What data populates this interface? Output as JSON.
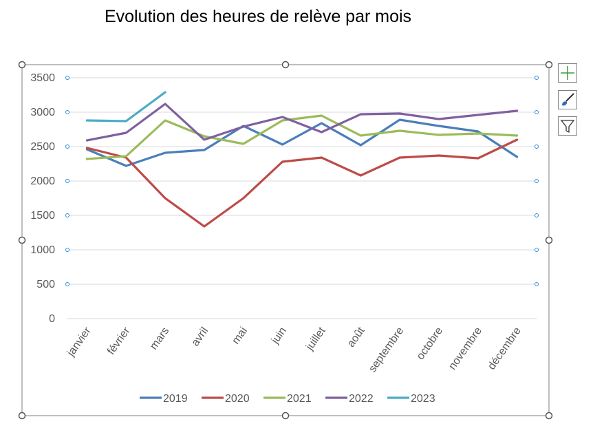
{
  "chart_data": {
    "type": "line",
    "title": "Evolution des heures de relève par mois",
    "xlabel": "",
    "ylabel": "",
    "ylim": [
      0,
      3500
    ],
    "yticks": [
      0,
      500,
      1000,
      1500,
      2000,
      2500,
      3000,
      3500
    ],
    "grid": true,
    "legend_position": "bottom",
    "categories": [
      "janvier",
      "février",
      "mars",
      "avril",
      "mai",
      "juin",
      "juillet",
      "août",
      "septembre",
      "octobre",
      "novembre",
      "décembre"
    ],
    "series": [
      {
        "name": "2019",
        "color": "#4a7ebb",
        "values": [
          2460,
          2220,
          2410,
          2450,
          2800,
          2530,
          2840,
          2520,
          2890,
          2800,
          2720,
          2350
        ]
      },
      {
        "name": "2020",
        "color": "#be4b48",
        "values": [
          2480,
          2340,
          1750,
          1340,
          1750,
          2280,
          2340,
          2080,
          2340,
          2370,
          2330,
          2600
        ]
      },
      {
        "name": "2021",
        "color": "#9bbb59",
        "values": [
          2320,
          2360,
          2880,
          2650,
          2540,
          2880,
          2950,
          2660,
          2730,
          2670,
          2690,
          2660
        ]
      },
      {
        "name": "2022",
        "color": "#7f60a0",
        "values": [
          2590,
          2700,
          3120,
          2600,
          2790,
          2930,
          2710,
          2970,
          2980,
          2900,
          2960,
          3020
        ]
      },
      {
        "name": "2023",
        "color": "#4bacc6",
        "values": [
          2880,
          2870,
          3290,
          null,
          null,
          null,
          null,
          null,
          null,
          null,
          null,
          null
        ]
      }
    ]
  },
  "side_buttons": {
    "elements": "plus-icon",
    "styles": "paintbrush-icon",
    "filter": "filter-icon"
  }
}
